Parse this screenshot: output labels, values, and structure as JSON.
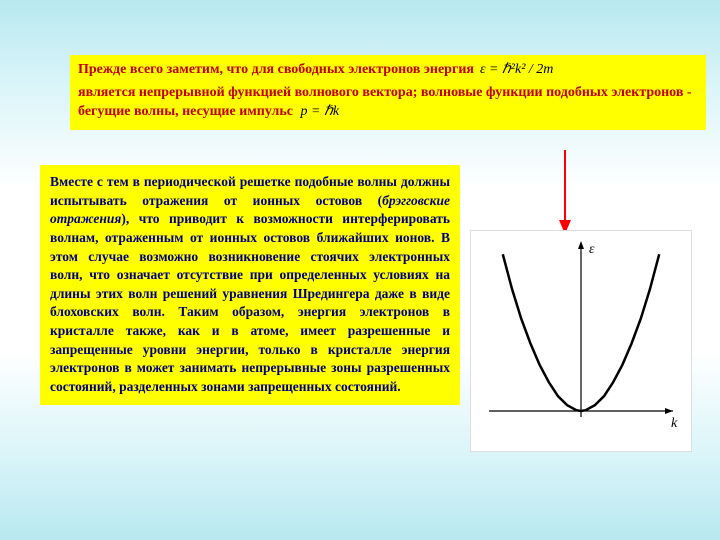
{
  "top": {
    "line1_prefix": "Прежде всего заметим, что для свободных электронов энергия",
    "formula_energy": "ε = ℏ²k² / 2m",
    "line2": "является непрерывной функцией волнового вектора; волновые функции подобных электронов - бегущие волны, несущие импульс",
    "formula_momentum": "p = ℏk",
    "text_color": "#c00000",
    "bg": "#ffff00"
  },
  "left": {
    "text_before_bragg": "Вместе с тем в периодической решетке подобные волны должны испытывать отражения от ионных остовов (",
    "bragg": "брэгговские отражения",
    "text_after_bragg": "), что приводит к возможности интерферировать волнам, отраженным от ионных остовов ближайших ионов. В этом случае возможно возникновение стоячих электронных волн, что означает отсутствие при определенных условиях на длины этих волн решений уравнения Шредингера даже в виде блоховских волн. Таким образом, энергия электронов в кристалле также, как и в атоме, имеет разрешенные и запрещенные уровни энергии, только в кристалле энергия электронов в может занимать непрерывные зоны разрешенных состояний, разделенных зонами запрещенных состояний.",
    "text_color": "#000080",
    "bg": "#ffff00"
  },
  "arrow": {
    "color": "#ff0000",
    "length": 70,
    "head_w": 12,
    "head_h": 14,
    "stroke_w": 2
  },
  "chart": {
    "type": "line",
    "title": "",
    "x_axis_label": "k",
    "y_axis_label": "ε",
    "bg": "#ffffff",
    "axis_color": "#000000",
    "curve_color": "#000000",
    "curve_width": 2.5,
    "axis_width": 1.2,
    "xlim": [
      -100,
      100
    ],
    "ylim": [
      0,
      200
    ],
    "points": [
      [
        -85,
        190
      ],
      [
        -75,
        148
      ],
      [
        -65,
        112
      ],
      [
        -55,
        82
      ],
      [
        -45,
        56
      ],
      [
        -35,
        35
      ],
      [
        -25,
        18
      ],
      [
        -15,
        7
      ],
      [
        -5,
        1
      ],
      [
        0,
        0
      ],
      [
        5,
        1
      ],
      [
        15,
        7
      ],
      [
        25,
        18
      ],
      [
        35,
        35
      ],
      [
        45,
        56
      ],
      [
        55,
        82
      ],
      [
        65,
        112
      ],
      [
        75,
        148
      ],
      [
        85,
        190
      ]
    ],
    "label_fontsize": 14,
    "label_fontstyle": "italic"
  }
}
